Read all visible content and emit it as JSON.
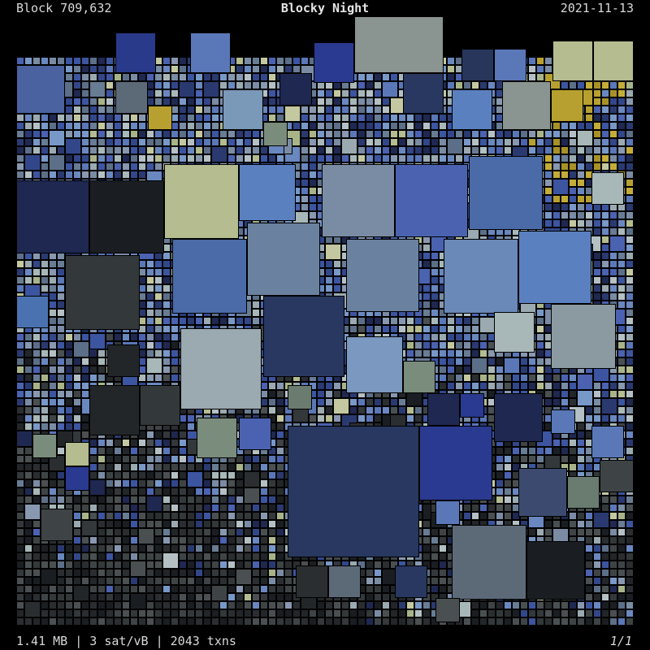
{
  "header": {
    "block_label": "Block 709,632",
    "title": "Blocky Night",
    "date": "2021-11-13"
  },
  "footer": {
    "stats": "1.41 MB | 3 sat/vB | 2043 txns",
    "page": "1/1"
  },
  "palette": {
    "background": "#000000",
    "night": [
      "#1e2850",
      "#2a3a70",
      "#32478a",
      "#3c55a0",
      "#4a62b0",
      "#5a78b8",
      "#6a88c0",
      "#7898c8"
    ],
    "slate": [
      "#5c6f88",
      "#687c94",
      "#7a8ca4",
      "#8898b0"
    ],
    "pale": [
      "#9aaab0",
      "#a8b8b8",
      "#b4c0c4"
    ],
    "sage": [
      "#a8b488",
      "#b4bc90",
      "#c4c8a0"
    ],
    "dark": [
      "#1a1e22",
      "#222628",
      "#2a2e30",
      "#33383a",
      "#3e4446",
      "#4a5052"
    ],
    "gold": [
      "#b8a030",
      "#c4ac38",
      "#a89228"
    ]
  }
}
